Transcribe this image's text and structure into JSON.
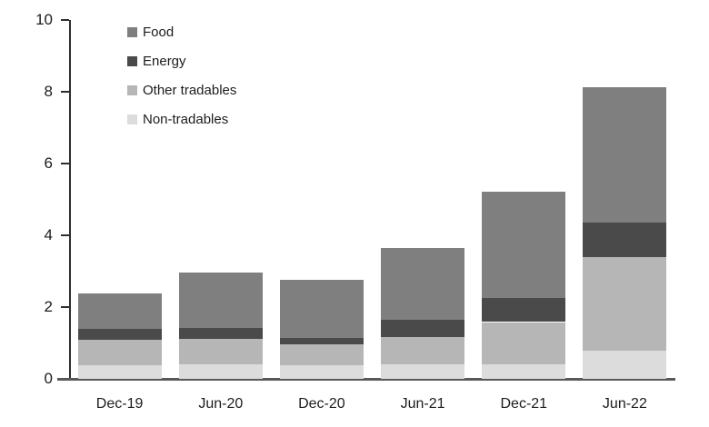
{
  "chart_data": {
    "type": "bar",
    "stacked": true,
    "title": "",
    "xlabel": "",
    "ylabel": "",
    "categories": [
      "Dec-19",
      "Jun-20",
      "Dec-20",
      "Jun-21",
      "Dec-21",
      "Jun-22"
    ],
    "series": [
      {
        "name": "Non-tradables",
        "color": "#dcdcdc",
        "values": [
          0.38,
          0.4,
          0.38,
          0.4,
          0.41,
          0.78
        ]
      },
      {
        "name": "Other tradables",
        "color": "#b6b6b6",
        "values": [
          0.7,
          0.72,
          0.58,
          0.77,
          1.17,
          2.62
        ]
      },
      {
        "name": "Energy",
        "color": "#4a4a4a",
        "values": [
          0.3,
          0.3,
          0.17,
          0.47,
          0.68,
          0.94
        ]
      },
      {
        "name": "Food",
        "color": "#7f7f7f",
        "values": [
          0.99,
          1.53,
          1.62,
          1.99,
          2.94,
          3.78
        ]
      }
    ],
    "totals": [
      2.37,
      2.95,
      2.75,
      3.63,
      5.2,
      8.12
    ],
    "ylim": [
      0,
      10
    ],
    "yticks": [
      0,
      2,
      4,
      6,
      8,
      10
    ],
    "grid": false,
    "legend": {
      "position": "top-left",
      "order": [
        "Food",
        "Energy",
        "Other tradables",
        "Non-tradables"
      ]
    },
    "colors": {
      "axis": "#2e2e2e",
      "baseline": "#595959",
      "text": "#1c1c1c",
      "background": "#ffffff"
    }
  }
}
